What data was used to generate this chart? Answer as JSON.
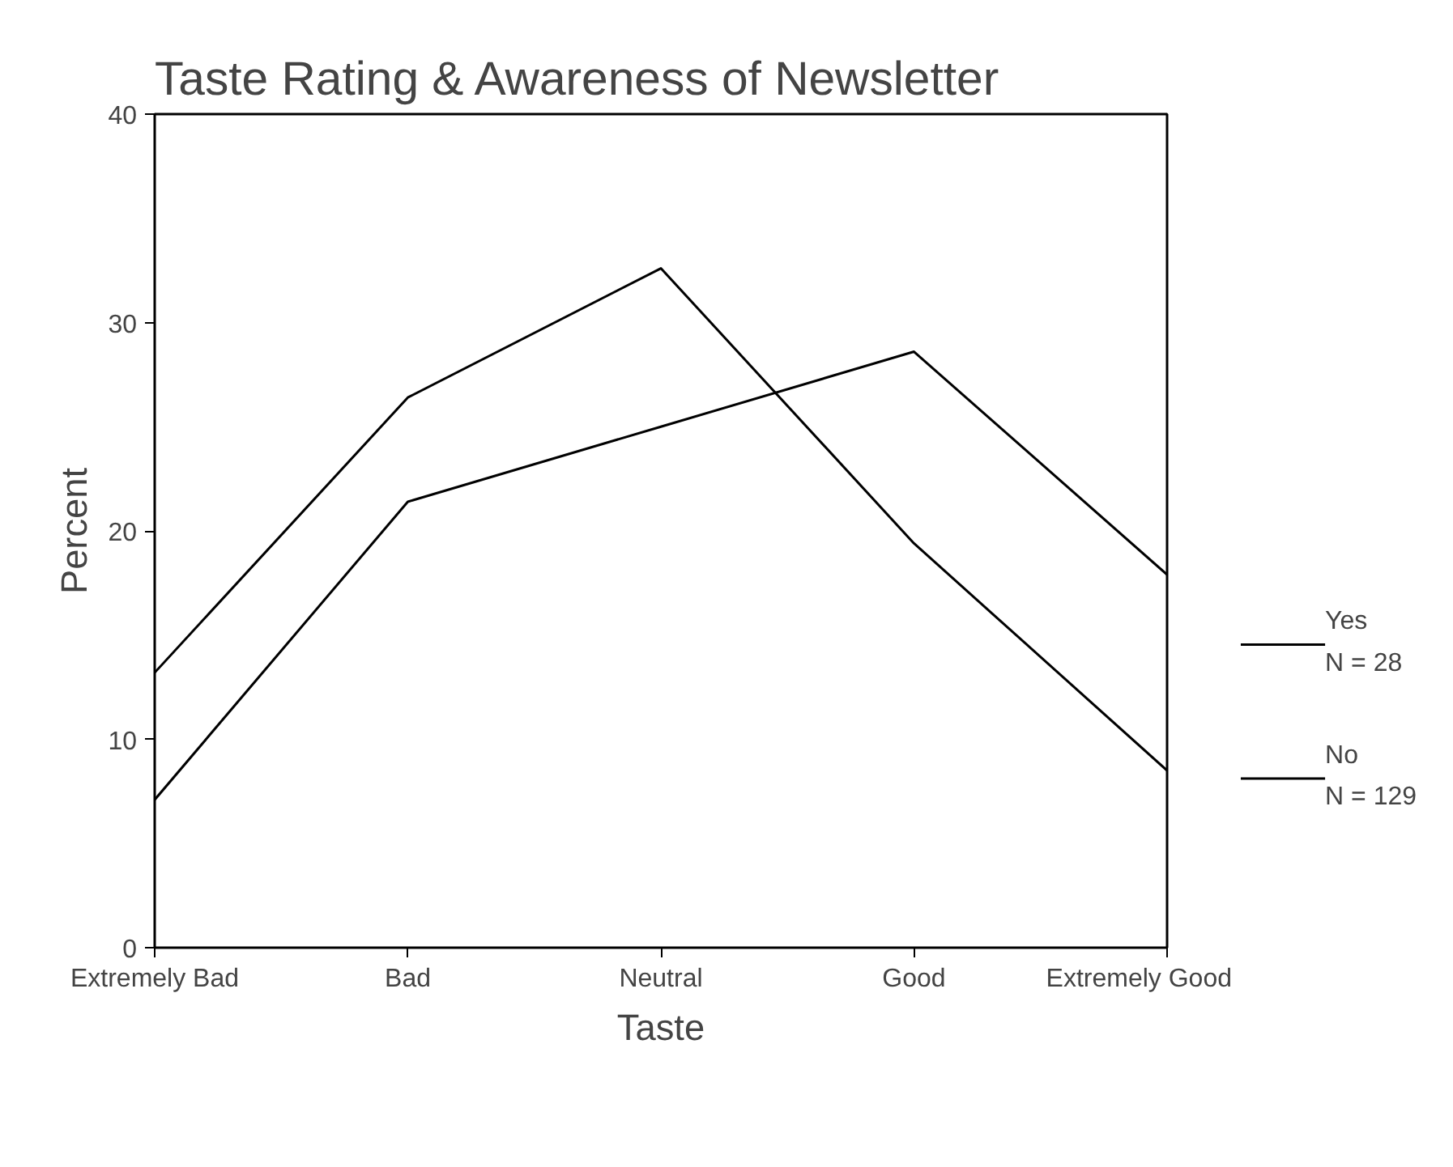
{
  "chart_data": {
    "type": "line",
    "title": "Taste Rating & Awareness of Newsletter",
    "xlabel": "Taste",
    "ylabel": "Percent",
    "categories": [
      "Extremely Bad",
      "Bad",
      "Neutral",
      "Good",
      "Extremely Good"
    ],
    "series": [
      {
        "name": "Yes",
        "color": "#000000",
        "values": [
          7.1,
          21.4,
          25.0,
          28.6,
          17.9
        ]
      },
      {
        "name": "No",
        "color": "#000000",
        "values": [
          13.2,
          26.4,
          32.6,
          19.4,
          8.5
        ]
      }
    ],
    "ylim": [
      0,
      40
    ],
    "yticks": [
      0,
      10,
      20,
      30,
      40
    ],
    "grid": false,
    "legend": "right",
    "marker": "none",
    "line_style": "solid",
    "annotations": [
      "N = 28",
      "N = 129"
    ]
  }
}
